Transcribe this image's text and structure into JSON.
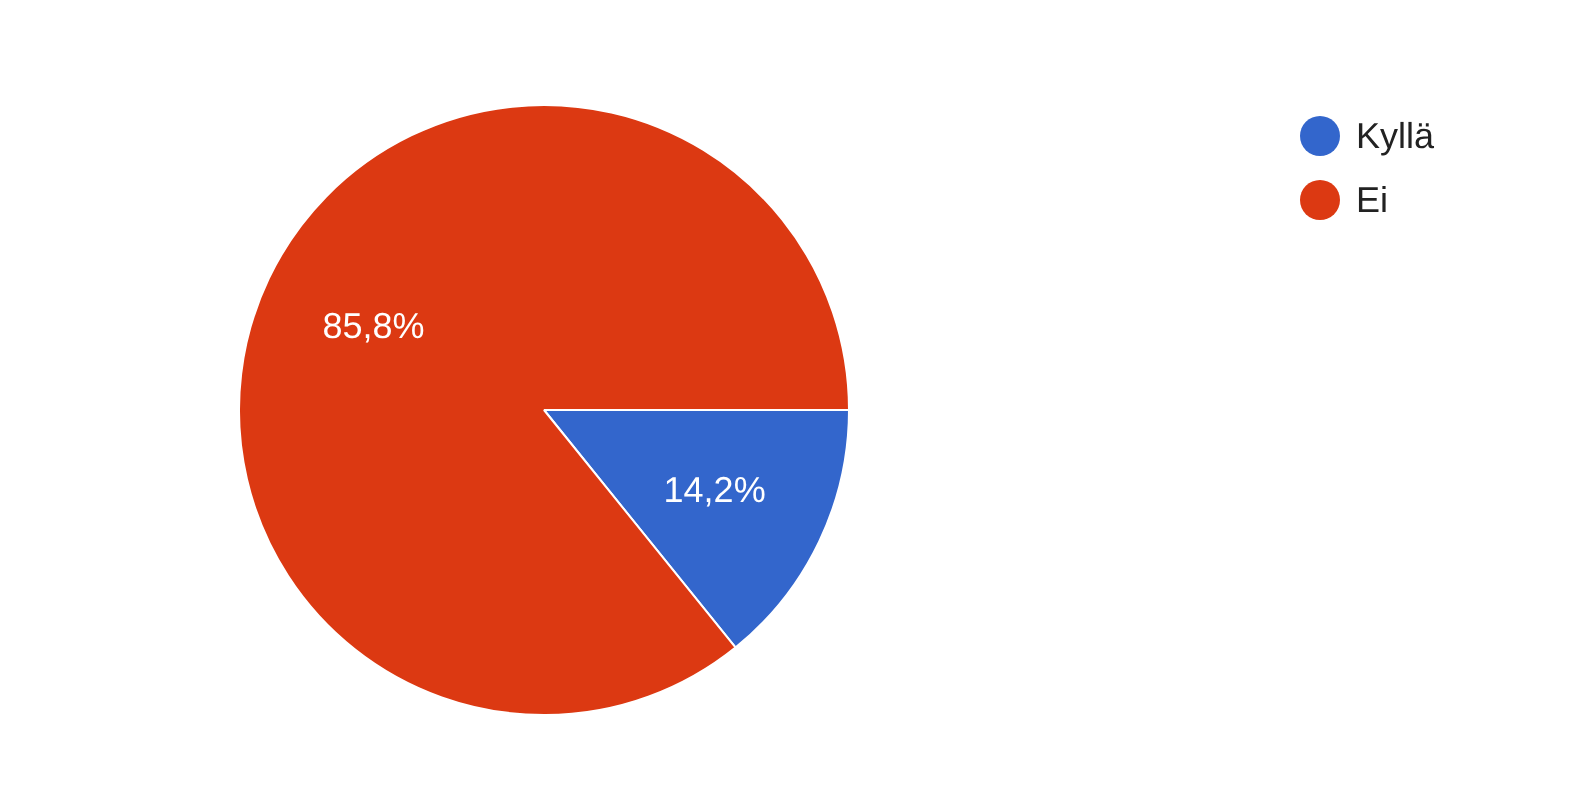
{
  "chart_data": {
    "type": "pie",
    "categories": [
      "Kyllä",
      "Ei"
    ],
    "values": [
      14.2,
      85.8
    ],
    "colors": [
      "#3366cc",
      "#dc3912"
    ],
    "value_labels": [
      "14,2%",
      "85,8%"
    ],
    "legend": "top right"
  }
}
